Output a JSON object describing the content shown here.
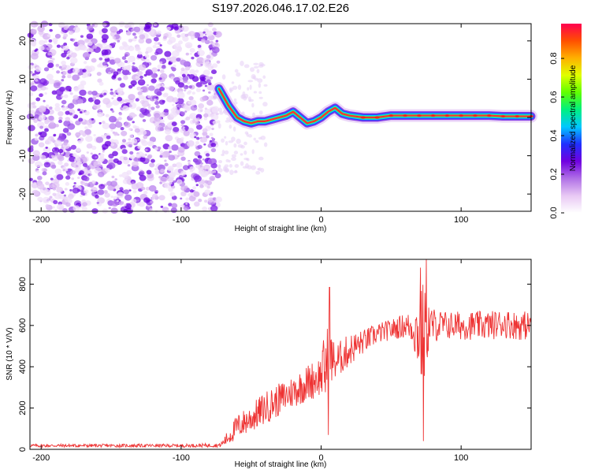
{
  "title": "S197.2026.046.17.02.E26",
  "chart_data": [
    {
      "type": "heatmap",
      "panel": "top",
      "xlabel": "Height of straight line (km)",
      "ylabel": "Frequency (Hz)",
      "xlim": [
        -208,
        150
      ],
      "ylim": [
        -24.5,
        24.5
      ],
      "xticks": [
        -200,
        -100,
        0,
        100
      ],
      "xtick_labels": [
        "-200",
        "-100",
        "0",
        "100"
      ],
      "yticks": [
        -20,
        -10,
        0,
        10,
        20
      ],
      "ytick_labels": [
        "-20",
        "-10",
        "0",
        "10",
        "20"
      ],
      "noise_region_x": [
        -208,
        -73
      ],
      "signal_trace": {
        "x": [
          -73,
          -66,
          -60,
          -55,
          -50,
          -45,
          -40,
          -35,
          -30,
          -25,
          -20,
          -15,
          -10,
          -5,
          0,
          5,
          10,
          15,
          20,
          30,
          40,
          50,
          60,
          70,
          80,
          90,
          100,
          110,
          120,
          130,
          140,
          150
        ],
        "y": [
          7.5,
          3,
          0,
          -1,
          -1.5,
          -1,
          -1,
          -0.5,
          0,
          0.5,
          1.5,
          0,
          -1.5,
          -1,
          0,
          1.5,
          2.5,
          1,
          0.5,
          0,
          0,
          0.5,
          0.5,
          0.5,
          0.5,
          0.5,
          0.5,
          0.5,
          0.5,
          0.3,
          0.3,
          0.3
        ]
      },
      "colorbar": {
        "label": "Normalized spectral amplitude",
        "range": [
          0.0,
          0.98
        ],
        "ticks": [
          0.0,
          0.2,
          0.4,
          0.6,
          0.8
        ],
        "tick_labels": [
          "0.0",
          "0.2",
          "0.4",
          "0.6",
          "0.8"
        ],
        "colors": [
          "#ffffff",
          "#e8c8f4",
          "#b070e6",
          "#7000e0",
          "#2030ff",
          "#00c8ff",
          "#00f080",
          "#60ff00",
          "#e0ff00",
          "#ffb000",
          "#ff5000",
          "#ff0050"
        ]
      }
    },
    {
      "type": "line",
      "panel": "bottom",
      "xlabel": "Height of straight line (km)",
      "ylabel": "SNR (10 * V/V)",
      "xlim": [
        -208,
        150
      ],
      "ylim": [
        0,
        920
      ],
      "xticks": [
        -200,
        -100,
        0,
        100
      ],
      "xtick_labels": [
        "-200",
        "-100",
        "0",
        "100"
      ],
      "yticks": [
        0,
        200,
        400,
        600,
        800
      ],
      "ytick_labels": [
        "0",
        "200",
        "400",
        "600",
        "800"
      ],
      "color": "#ee3333",
      "series_envelope": {
        "x": [
          -208,
          -100,
          -72,
          -66,
          -60,
          -50,
          -40,
          -30,
          -20,
          -10,
          0,
          3,
          6,
          10,
          20,
          30,
          40,
          50,
          60,
          65,
          70,
          73,
          75,
          78,
          82,
          90,
          100,
          110,
          120,
          130,
          140,
          150
        ],
        "mean": [
          18,
          18,
          20,
          60,
          110,
          150,
          200,
          240,
          280,
          320,
          360,
          400,
          450,
          420,
          480,
          520,
          560,
          580,
          600,
          590,
          560,
          520,
          600,
          600,
          600,
          600,
          600,
          600,
          600,
          610,
          600,
          600
        ],
        "amplitude": [
          8,
          8,
          10,
          40,
          60,
          70,
          80,
          80,
          80,
          90,
          100,
          200,
          150,
          90,
          80,
          60,
          50,
          50,
          60,
          80,
          200,
          300,
          200,
          100,
          80,
          70,
          70,
          70,
          70,
          70,
          70,
          70
        ]
      },
      "spikes": [
        {
          "x": 6,
          "y": 785
        },
        {
          "x": 5,
          "y": 70
        },
        {
          "x": 71,
          "y": 880
        },
        {
          "x": 75,
          "y": 920
        },
        {
          "x": 73,
          "y": 40
        }
      ]
    }
  ]
}
